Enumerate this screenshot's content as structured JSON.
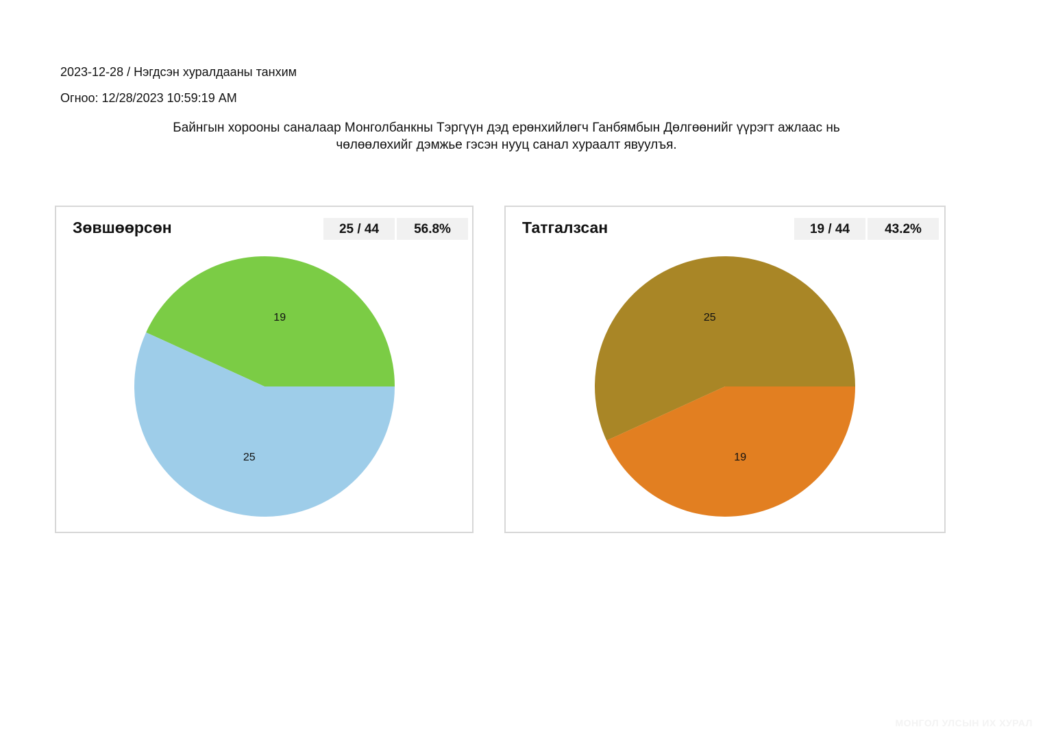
{
  "header": {
    "session": "2023-12-28 / Нэгдсэн хуралдааны танхим",
    "date_label": "Огноо:",
    "date_value": "12/28/2023 10:59:19 AM",
    "question_line1": "Байнгын хорооны саналаар Монголбанкны Тэргүүн дэд ерөнхийлөгч Ганбямбын Дөлгөөнийг үүрэгт ажлаас нь",
    "question_line2": "чөлөөлөхийг дэмжье гэсэн нууц санал хураалт явуулъя."
  },
  "panels": {
    "approved": {
      "title": "Зөвшөөрсөн",
      "count": "25 / 44",
      "percent": "56.8%"
    },
    "rejected": {
      "title": "Татгалзсан",
      "count": "19 / 44",
      "percent": "43.2%"
    }
  },
  "watermark": "МОНГОЛ УЛСЫН ИХ ХУРАЛ",
  "chart_data": [
    {
      "type": "pie",
      "title": "Зөвшөөрсөн",
      "slices": [
        {
          "label": "19",
          "value": 19,
          "color": "#7bcc45"
        },
        {
          "label": "25",
          "value": 25,
          "color": "#9ecde9"
        }
      ]
    },
    {
      "type": "pie",
      "title": "Татгалзсан",
      "slices": [
        {
          "label": "25",
          "value": 25,
          "color": "#a98626"
        },
        {
          "label": "19",
          "value": 19,
          "color": "#e27f21"
        }
      ]
    }
  ]
}
